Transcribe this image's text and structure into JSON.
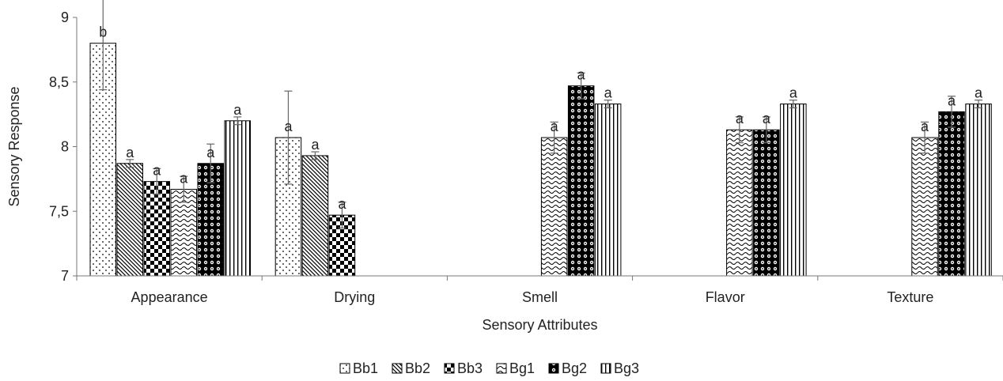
{
  "chart_data": {
    "type": "bar",
    "xlabel": "Sensory Attributes",
    "ylabel": "Sensory Response",
    "ylim": [
      7,
      9
    ],
    "yticks": [
      "7",
      "7,5",
      "8",
      "8,5",
      "9"
    ],
    "grid": false,
    "legend_position": "bottom",
    "categories": [
      "Appearance",
      "Drying",
      "Smell",
      "Flavor",
      "Texture"
    ],
    "series": [
      {
        "name": "Bb1",
        "pattern": "dots",
        "values": [
          8.8,
          8.07,
          null,
          null,
          null
        ],
        "errors": [
          0.36,
          0.36,
          null,
          null,
          null
        ],
        "labels": [
          "b",
          "a",
          "",
          "",
          ""
        ]
      },
      {
        "name": "Bb2",
        "pattern": "diagonal",
        "values": [
          7.87,
          7.93,
          null,
          null,
          null
        ],
        "errors": [
          0.03,
          0.03,
          null,
          null,
          null
        ],
        "labels": [
          "a",
          "a",
          "",
          "",
          ""
        ]
      },
      {
        "name": "Bb3",
        "pattern": "checker",
        "values": [
          7.73,
          7.47,
          null,
          null,
          null
        ],
        "errors": [
          0.1,
          0.1,
          null,
          null,
          null
        ],
        "labels": [
          "a",
          "a",
          "",
          "",
          ""
        ]
      },
      {
        "name": "Bg1",
        "pattern": "wave",
        "values": [
          7.67,
          null,
          8.07,
          8.13,
          8.07
        ],
        "errors": [
          0.1,
          null,
          0.12,
          0.1,
          0.12
        ],
        "labels": [
          "a",
          "",
          "a",
          "a",
          "a"
        ]
      },
      {
        "name": "Bg2",
        "pattern": "circles",
        "values": [
          7.87,
          null,
          8.47,
          8.13,
          8.27
        ],
        "errors": [
          0.15,
          null,
          0.1,
          0.1,
          0.12
        ],
        "labels": [
          "a",
          "",
          "a",
          "a",
          "a"
        ]
      },
      {
        "name": "Bg3",
        "pattern": "verticals",
        "values": [
          8.2,
          null,
          8.33,
          8.33,
          8.33
        ],
        "errors": [
          0.03,
          null,
          0.03,
          0.03,
          0.03
        ],
        "labels": [
          "a",
          "",
          "a",
          "a",
          "a"
        ]
      }
    ]
  }
}
